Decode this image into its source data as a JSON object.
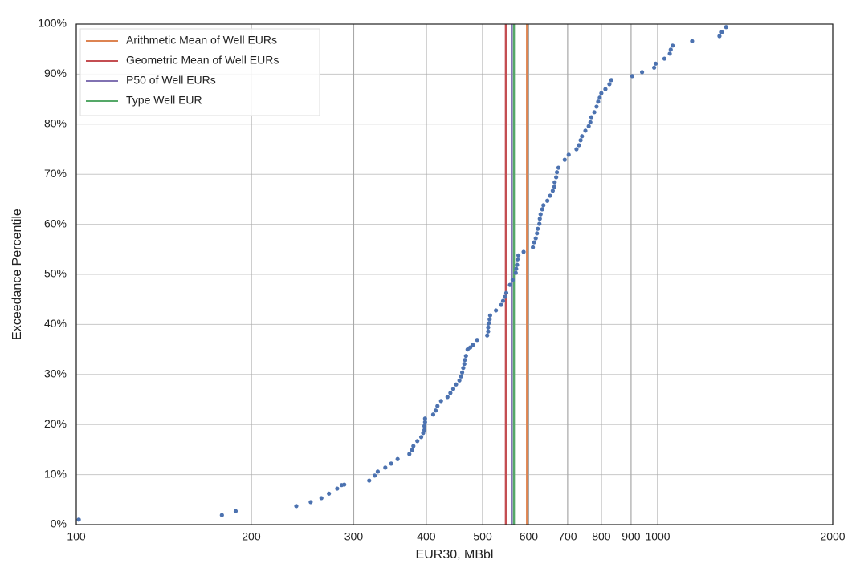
{
  "chart_data": {
    "type": "scatter",
    "xlabel": "EUR30, MBbl",
    "ylabel": "Exceedance Percentile",
    "x_scale": "log",
    "grid": true,
    "legend": "upper left",
    "xlim": [
      100,
      2000
    ],
    "xticks": [
      100,
      200,
      300,
      400,
      500,
      600,
      700,
      800,
      900,
      1000,
      2000
    ],
    "ylim": [
      0,
      100
    ],
    "yticks": [
      {
        "value": 0,
        "label": "0%"
      },
      {
        "value": 10,
        "label": "10%"
      },
      {
        "value": 20,
        "label": "20%"
      },
      {
        "value": 30,
        "label": "30%"
      },
      {
        "value": 40,
        "label": "40%"
      },
      {
        "value": 50,
        "label": "50%"
      },
      {
        "value": 60,
        "label": "60%"
      },
      {
        "value": 70,
        "label": "70%"
      },
      {
        "value": 80,
        "label": "80%"
      },
      {
        "value": 90,
        "label": "90%"
      },
      {
        "value": 100,
        "label": "100%"
      }
    ],
    "color": "#4c72b0",
    "x": [
      101,
      178,
      188,
      239,
      253,
      264,
      272,
      281,
      286,
      289,
      319,
      326,
      330,
      340,
      348,
      357,
      374,
      378,
      380,
      386,
      392,
      395,
      397,
      397,
      398,
      398,
      411,
      415,
      418,
      424,
      435,
      440,
      445,
      450,
      456,
      459,
      461,
      463,
      465,
      466,
      468,
      471,
      476,
      481,
      489,
      509,
      511,
      511,
      512,
      514,
      515,
      527,
      538,
      542,
      546,
      549,
      557,
      563,
      570,
      571,
      573,
      574,
      576,
      588,
      610,
      613,
      617,
      620,
      622,
      626,
      627,
      629,
      633,
      636,
      646,
      653,
      660,
      664,
      665,
      669,
      671,
      675,
      692,
      703,
      725,
      732,
      737,
      741,
      751,
      761,
      766,
      769,
      778,
      785,
      790,
      795,
      800,
      813,
      826,
      832,
      904,
      940,
      986,
      992,
      1027,
      1049,
      1053,
      1061,
      1146,
      1277,
      1289,
      1311
    ],
    "y": [
      1.0,
      1.9,
      2.7,
      3.7,
      4.5,
      5.3,
      6.2,
      7.2,
      7.9,
      8.0,
      8.8,
      9.8,
      10.6,
      11.4,
      12.2,
      13.1,
      14.1,
      14.9,
      15.7,
      16.7,
      17.5,
      18.3,
      18.9,
      19.7,
      20.5,
      21.2,
      22.0,
      22.8,
      23.7,
      24.7,
      25.5,
      26.3,
      27.1,
      28.0,
      28.8,
      29.6,
      30.4,
      31.3,
      32.1,
      32.9,
      33.7,
      35.0,
      35.4,
      35.9,
      36.9,
      37.8,
      38.6,
      39.4,
      40.2,
      41.0,
      41.8,
      42.8,
      43.9,
      44.7,
      45.5,
      46.3,
      47.9,
      48.9,
      50.3,
      51.1,
      51.9,
      53.0,
      53.8,
      54.5,
      55.4,
      56.4,
      57.2,
      58.2,
      59.1,
      60.1,
      61.1,
      62.0,
      63.0,
      63.8,
      64.7,
      65.7,
      66.7,
      67.5,
      68.4,
      69.4,
      70.4,
      71.3,
      72.9,
      73.9,
      75.0,
      75.8,
      76.8,
      77.6,
      78.7,
      79.6,
      80.4,
      81.4,
      82.4,
      83.5,
      84.5,
      85.3,
      86.2,
      87.0,
      88.0,
      88.8,
      89.6,
      90.4,
      91.3,
      92.1,
      93.1,
      94.1,
      94.9,
      95.7,
      96.6,
      97.6,
      98.4,
      99.4
    ],
    "reference_lines": [
      {
        "name": "Arithmetic Mean of Well EURs",
        "color": "#dd8452",
        "value": 596
      },
      {
        "name": "Geometric Mean of Well EURs",
        "color": "#c44e52",
        "value": 548
      },
      {
        "name": "P50 of Well EURs",
        "color": "#8172b2",
        "value": 561
      },
      {
        "name": "Type Well EUR",
        "color": "#55a868",
        "value": 566
      }
    ]
  }
}
